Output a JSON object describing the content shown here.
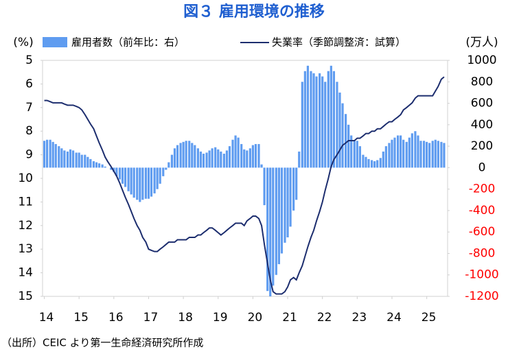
{
  "chart_data": {
    "type": "bar_line",
    "title": "図３ 雇用環境の推移",
    "y_label": "(%)",
    "y2_label": "(万人)",
    "source": "（出所）CEIC より第一生命経済研究所作成",
    "xlim": [
      2013.95,
      2025.6
    ],
    "xticks": [
      {
        "value": 2014,
        "label": "14"
      },
      {
        "value": 2015,
        "label": "15"
      },
      {
        "value": 2016,
        "label": "16"
      },
      {
        "value": 2017,
        "label": "17"
      },
      {
        "value": 2018,
        "label": "18"
      },
      {
        "value": 2019,
        "label": "19"
      },
      {
        "value": 2020,
        "label": "20"
      },
      {
        "value": 2021,
        "label": "21"
      },
      {
        "value": 2022,
        "label": "22"
      },
      {
        "value": 2023,
        "label": "23"
      },
      {
        "value": 2024,
        "label": "24"
      },
      {
        "value": 2025,
        "label": "25"
      }
    ],
    "ylim": [
      5,
      15
    ],
    "y_inverted": true,
    "yticks": [
      5,
      6,
      7,
      8,
      9,
      10,
      11,
      12,
      13,
      14,
      15
    ],
    "y2lim": [
      -1200,
      1000
    ],
    "y2ticks": [
      -1200,
      -1000,
      -800,
      -600,
      -400,
      -200,
      0,
      200,
      400,
      600,
      800,
      1000
    ],
    "negative_tick_color": "#ff0000",
    "x": [
      2014,
      2014.08,
      2014.17,
      2014.25,
      2014.33,
      2014.42,
      2014.5,
      2014.58,
      2014.67,
      2014.75,
      2014.83,
      2014.92,
      2015,
      2015.08,
      2015.17,
      2015.25,
      2015.33,
      2015.42,
      2015.5,
      2015.58,
      2015.67,
      2015.75,
      2015.83,
      2015.92,
      2016,
      2016.08,
      2016.17,
      2016.25,
      2016.33,
      2016.42,
      2016.5,
      2016.58,
      2016.67,
      2016.75,
      2016.83,
      2016.92,
      2017,
      2017.08,
      2017.17,
      2017.25,
      2017.33,
      2017.42,
      2017.5,
      2017.58,
      2017.67,
      2017.75,
      2017.83,
      2017.92,
      2018,
      2018.08,
      2018.17,
      2018.25,
      2018.33,
      2018.42,
      2018.5,
      2018.58,
      2018.67,
      2018.75,
      2018.83,
      2018.92,
      2019,
      2019.08,
      2019.17,
      2019.25,
      2019.33,
      2019.42,
      2019.5,
      2019.58,
      2019.67,
      2019.75,
      2019.83,
      2019.92,
      2020,
      2020.08,
      2020.17,
      2020.25,
      2020.33,
      2020.42,
      2020.5,
      2020.58,
      2020.67,
      2020.75,
      2020.83,
      2020.92,
      2021,
      2021.08,
      2021.17,
      2021.25,
      2021.33,
      2021.42,
      2021.5,
      2021.58,
      2021.67,
      2021.75,
      2021.83,
      2021.92,
      2022,
      2022.08,
      2022.17,
      2022.25,
      2022.33,
      2022.42,
      2022.5,
      2022.58,
      2022.67,
      2022.75,
      2022.83,
      2022.92,
      2023,
      2023.08,
      2023.17,
      2023.25,
      2023.33,
      2023.42,
      2023.5,
      2023.58,
      2023.67,
      2023.75,
      2023.83,
      2023.92,
      2024,
      2024.08,
      2024.17,
      2024.25,
      2024.33,
      2024.42,
      2024.5,
      2024.58,
      2024.67,
      2024.75,
      2024.83,
      2024.92,
      2025,
      2025.08,
      2025.17,
      2025.25,
      2025.33,
      2025.42,
      2025.5
    ],
    "series": [
      {
        "name": "雇用者数（前年比：右）",
        "type": "bar",
        "axis": "y2",
        "color": "#5f9cf0",
        "values": [
          250,
          260,
          260,
          240,
          220,
          200,
          180,
          160,
          150,
          170,
          160,
          140,
          140,
          120,
          120,
          100,
          80,
          60,
          50,
          40,
          30,
          10,
          0,
          -20,
          -40,
          -80,
          -110,
          -150,
          -180,
          -220,
          -250,
          -280,
          -300,
          -320,
          -300,
          -290,
          -290,
          -270,
          -240,
          -200,
          -150,
          -80,
          -20,
          50,
          120,
          180,
          210,
          230,
          240,
          250,
          250,
          230,
          210,
          180,
          150,
          130,
          140,
          160,
          180,
          190,
          170,
          150,
          130,
          160,
          200,
          260,
          300,
          280,
          220,
          170,
          160,
          180,
          210,
          220,
          220,
          30,
          -350,
          -1150,
          -1200,
          -1100,
          -1000,
          -900,
          -800,
          -700,
          -650,
          -550,
          -400,
          -300,
          150,
          800,
          900,
          950,
          900,
          880,
          850,
          880,
          850,
          800,
          900,
          950,
          900,
          800,
          700,
          600,
          500,
          400,
          300,
          250,
          250,
          200,
          120,
          100,
          80,
          70,
          60,
          70,
          90,
          150,
          200,
          230,
          260,
          280,
          300,
          300,
          260,
          240,
          280,
          320,
          340,
          300,
          250,
          250,
          240,
          230,
          250,
          260,
          250,
          240,
          230
        ]
      },
      {
        "name": "失業率（季節調整済：試算）",
        "type": "line",
        "axis": "y",
        "color": "#1c2d6e",
        "values": [
          6.7,
          6.7,
          6.75,
          6.8,
          6.8,
          6.8,
          6.8,
          6.85,
          6.9,
          6.9,
          6.9,
          6.95,
          7.0,
          7.1,
          7.3,
          7.5,
          7.7,
          7.9,
          8.2,
          8.5,
          8.8,
          9.1,
          9.3,
          9.5,
          9.7,
          9.9,
          10.2,
          10.5,
          10.8,
          11.1,
          11.4,
          11.7,
          12.0,
          12.2,
          12.5,
          12.7,
          13.0,
          13.05,
          13.1,
          13.1,
          13.0,
          12.9,
          12.8,
          12.7,
          12.7,
          12.7,
          12.6,
          12.6,
          12.6,
          12.6,
          12.5,
          12.5,
          12.5,
          12.4,
          12.4,
          12.3,
          12.2,
          12.1,
          12.1,
          12.2,
          12.3,
          12.4,
          12.3,
          12.2,
          12.1,
          12.0,
          11.9,
          11.9,
          11.9,
          12.0,
          11.8,
          11.7,
          11.6,
          11.6,
          11.7,
          12.0,
          12.8,
          13.6,
          14.3,
          14.8,
          14.9,
          14.9,
          14.9,
          14.8,
          14.6,
          14.3,
          14.2,
          14.3,
          14.0,
          13.7,
          13.3,
          12.9,
          12.5,
          12.2,
          11.8,
          11.4,
          11.0,
          10.5,
          10.0,
          9.5,
          9.2,
          9.0,
          8.8,
          8.6,
          8.5,
          8.4,
          8.4,
          8.4,
          8.3,
          8.3,
          8.2,
          8.1,
          8.1,
          8.0,
          8.0,
          7.9,
          7.9,
          7.8,
          7.7,
          7.6,
          7.6,
          7.5,
          7.4,
          7.3,
          7.1,
          7.0,
          6.9,
          6.8,
          6.6,
          6.5,
          6.5,
          6.5,
          6.5,
          6.5,
          6.5,
          6.3,
          6.1,
          5.8,
          5.7
        ]
      }
    ]
  }
}
